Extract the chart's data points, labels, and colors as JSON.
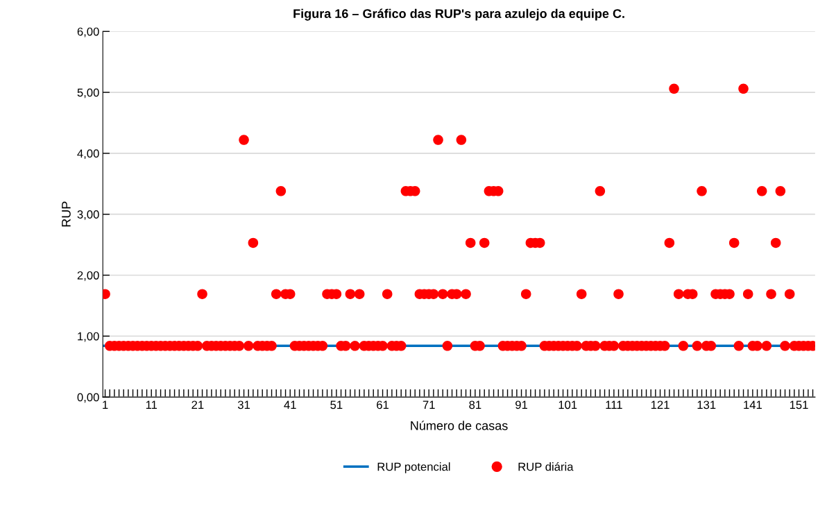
{
  "chart_data": {
    "type": "scatter",
    "title": "Figura 16 – Gráfico das RUP's para azulejo da equipe C.",
    "xlabel": "Número de casas",
    "ylabel": "RUP",
    "categories": [
      "1",
      null,
      null,
      null,
      null,
      null,
      null,
      null,
      null,
      null,
      "11",
      null,
      null,
      null,
      null,
      null,
      null,
      null,
      null,
      null,
      "21",
      null,
      null,
      null,
      null,
      null,
      null,
      null,
      null,
      null,
      "31",
      null,
      null,
      null,
      null,
      null,
      null,
      null,
      null,
      null,
      "41",
      null,
      null,
      null,
      null,
      null,
      null,
      null,
      null,
      null,
      "51",
      null,
      null,
      null,
      null,
      null,
      null,
      null,
      null,
      null,
      "61",
      null,
      null,
      null,
      null,
      null,
      null,
      null,
      null,
      null,
      "71",
      null,
      null,
      null,
      null,
      null,
      null,
      null,
      null,
      null,
      "81",
      null,
      null,
      null,
      null,
      null,
      null,
      null,
      null,
      null,
      "91",
      null,
      null,
      null,
      null,
      null,
      null,
      null,
      null,
      null,
      "101",
      null,
      null,
      null,
      null,
      null,
      null,
      null,
      null,
      null,
      "111",
      null,
      null,
      null,
      null,
      null,
      null,
      null,
      null,
      null,
      "121",
      null,
      null,
      null,
      null,
      null,
      null,
      null,
      null,
      null,
      "131",
      null,
      null,
      null,
      null,
      null,
      null,
      null,
      null,
      null,
      "141",
      null,
      null,
      null,
      null,
      null,
      null,
      null,
      null,
      null,
      "151",
      null,
      null,
      null
    ],
    "series": [
      {
        "name": "RUP diária",
        "color": "#ff0000",
        "marker": "circle",
        "values": [
          1.69,
          0.84,
          0.84,
          0.84,
          0.84,
          0.84,
          0.84,
          0.84,
          0.84,
          0.84,
          0.84,
          0.84,
          0.84,
          0.84,
          0.84,
          0.84,
          0.84,
          0.84,
          0.84,
          0.84,
          0.84,
          1.69,
          0.84,
          0.84,
          0.84,
          0.84,
          0.84,
          0.84,
          0.84,
          0.84,
          4.22,
          0.84,
          2.53,
          0.84,
          0.84,
          0.84,
          0.84,
          1.69,
          3.38,
          1.69,
          1.69,
          0.84,
          0.84,
          0.84,
          0.84,
          0.84,
          0.84,
          0.84,
          1.69,
          1.69,
          1.69,
          0.84,
          0.84,
          1.69,
          0.84,
          1.69,
          0.84,
          0.84,
          0.84,
          0.84,
          0.84,
          1.69,
          0.84,
          0.84,
          0.84,
          3.38,
          3.38,
          3.38,
          1.69,
          1.69,
          1.69,
          1.69,
          4.22,
          1.69,
          0.84,
          1.69,
          1.69,
          4.22,
          1.69,
          2.53,
          0.84,
          0.84,
          2.53,
          3.38,
          3.38,
          3.38,
          0.84,
          0.84,
          0.84,
          0.84,
          0.84,
          1.69,
          2.53,
          2.53,
          2.53,
          0.84,
          0.84,
          0.84,
          0.84,
          0.84,
          0.84,
          0.84,
          0.84,
          1.69,
          0.84,
          0.84,
          0.84,
          3.38,
          0.84,
          0.84,
          0.84,
          1.69,
          0.84,
          0.84,
          0.84,
          0.84,
          0.84,
          0.84,
          0.84,
          0.84,
          0.84,
          0.84,
          2.53,
          5.06,
          1.69,
          0.84,
          1.69,
          1.69,
          0.84,
          3.38,
          0.84,
          0.84,
          1.69,
          1.69,
          1.69,
          1.69,
          2.53,
          0.84,
          5.06,
          1.69,
          0.84,
          0.84,
          3.38,
          0.84,
          1.69,
          2.53,
          3.38,
          0.84,
          1.69,
          0.84,
          0.84,
          0.84,
          0.84,
          0.84
        ]
      }
    ],
    "ylim": [
      0,
      6
    ],
    "yticks": [
      {
        "value": 0,
        "label": "0,00"
      },
      {
        "value": 1,
        "label": "1,00"
      },
      {
        "value": 2,
        "label": "2,00"
      },
      {
        "value": 3,
        "label": "3,00"
      },
      {
        "value": 4,
        "label": "4,00"
      },
      {
        "value": 5,
        "label": "5,00"
      },
      {
        "value": 6,
        "label": "6,00"
      }
    ],
    "ref_lines": [
      {
        "axis": "y",
        "value": 0.84,
        "label": "RUP potencial",
        "color": "#0070c0",
        "line_style": "solid"
      }
    ],
    "grid": "y",
    "legend": "bottom"
  }
}
